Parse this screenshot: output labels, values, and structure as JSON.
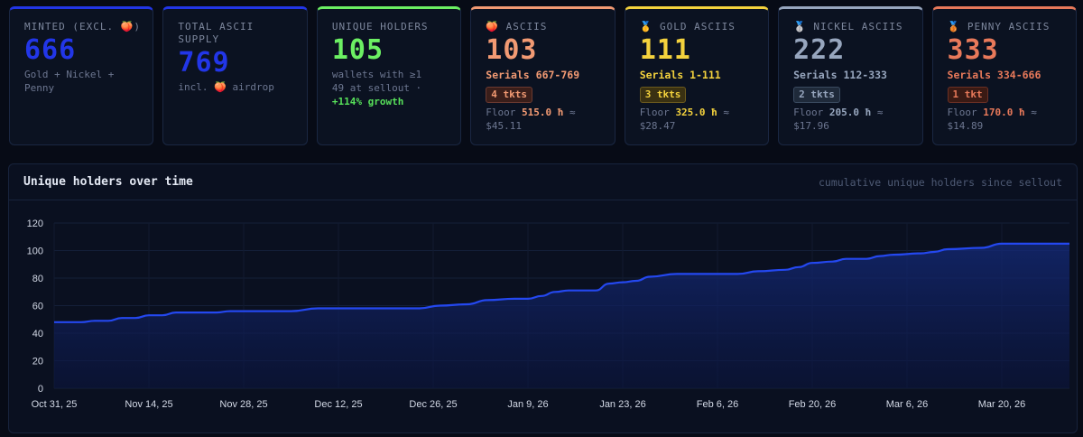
{
  "cards": [
    {
      "label": "MINTED (EXCL. 🍑)",
      "value": "666",
      "sub": "Gold + Nickel + Penny",
      "accent": "#2236e8"
    },
    {
      "label": "TOTAL ASCII SUPPLY",
      "value": "769",
      "sub": "incl. 🍑 airdrop",
      "accent": "#2236e8"
    },
    {
      "label": "UNIQUE HOLDERS",
      "value": "105",
      "sub": "wallets with ≥1",
      "sub2": "49 at sellout ·",
      "growth": "+114% growth",
      "accent": "#6cf063"
    },
    {
      "label": "🍑 ASCIIS",
      "value": "103",
      "serials": "Serials 667-769",
      "tkts": "4 tkts",
      "floor_label": "Floor",
      "floor": "515.0 ħ",
      "usd": "≈ $45.11",
      "accent": "#f29a73"
    },
    {
      "label": "🥇 GOLD ASCIIS",
      "value": "111",
      "serials": "Serials 1-111",
      "tkts": "3 tkts",
      "floor_label": "Floor",
      "floor": "325.0 ħ",
      "usd": "≈ $28.47",
      "accent": "#f4d23d"
    },
    {
      "label": "🥈 NICKEL ASCIIS",
      "value": "222",
      "serials": "Serials 112-333",
      "tkts": "2 tkts",
      "floor_label": "Floor",
      "floor": "205.0 ħ",
      "usd": "≈ $17.96",
      "accent": "#97a6be"
    },
    {
      "label": "🥉 PENNY ASCIIS",
      "value": "333",
      "serials": "Serials 334-666",
      "tkts": "1 tkt",
      "floor_label": "Floor",
      "floor": "170.0 ħ",
      "usd": "≈ $14.89",
      "accent": "#e8795a"
    }
  ],
  "panel": {
    "title": "Unique holders over time",
    "subtitle": "cumulative unique holders since sellout"
  },
  "chart_data": {
    "type": "area",
    "title": "Unique holders over time",
    "color": "#2448f0",
    "ylim": [
      0,
      120
    ],
    "yticks": [
      0,
      20,
      40,
      60,
      80,
      100,
      120
    ],
    "grid": true,
    "xticks": [
      "Oct 31, 25",
      "Nov 14, 25",
      "Nov 28, 25",
      "Dec 12, 25",
      "Dec 26, 25",
      "Jan 9, 26",
      "Jan 23, 26",
      "Feb 6, 26",
      "Feb 20, 26",
      "Mar 6, 26",
      "Mar 20, 26"
    ],
    "x_start": "2025-10-31",
    "x_end": "2026-03-30",
    "points": [
      {
        "x": "2025-10-31",
        "y": 48
      },
      {
        "x": "2025-11-04",
        "y": 48
      },
      {
        "x": "2025-11-06",
        "y": 49
      },
      {
        "x": "2025-11-08",
        "y": 49
      },
      {
        "x": "2025-11-10",
        "y": 51
      },
      {
        "x": "2025-11-12",
        "y": 51
      },
      {
        "x": "2025-11-14",
        "y": 53
      },
      {
        "x": "2025-11-16",
        "y": 53
      },
      {
        "x": "2025-11-18",
        "y": 55
      },
      {
        "x": "2025-11-24",
        "y": 55
      },
      {
        "x": "2025-11-26",
        "y": 56
      },
      {
        "x": "2025-12-05",
        "y": 56
      },
      {
        "x": "2025-12-09",
        "y": 58
      },
      {
        "x": "2025-12-24",
        "y": 58
      },
      {
        "x": "2025-12-27",
        "y": 60
      },
      {
        "x": "2025-12-31",
        "y": 61
      },
      {
        "x": "2026-01-03",
        "y": 64
      },
      {
        "x": "2026-01-07",
        "y": 65
      },
      {
        "x": "2026-01-09",
        "y": 65
      },
      {
        "x": "2026-01-11",
        "y": 67
      },
      {
        "x": "2026-01-13",
        "y": 70
      },
      {
        "x": "2026-01-15",
        "y": 71
      },
      {
        "x": "2026-01-19",
        "y": 71
      },
      {
        "x": "2026-01-21",
        "y": 76
      },
      {
        "x": "2026-01-23",
        "y": 77
      },
      {
        "x": "2026-01-25",
        "y": 78
      },
      {
        "x": "2026-01-27",
        "y": 81
      },
      {
        "x": "2026-01-31",
        "y": 83
      },
      {
        "x": "2026-02-09",
        "y": 83
      },
      {
        "x": "2026-02-12",
        "y": 85
      },
      {
        "x": "2026-02-16",
        "y": 86
      },
      {
        "x": "2026-02-18",
        "y": 88
      },
      {
        "x": "2026-02-20",
        "y": 91
      },
      {
        "x": "2026-02-23",
        "y": 92
      },
      {
        "x": "2026-02-25",
        "y": 94
      },
      {
        "x": "2026-02-28",
        "y": 94
      },
      {
        "x": "2026-03-02",
        "y": 96
      },
      {
        "x": "2026-03-04",
        "y": 97
      },
      {
        "x": "2026-03-08",
        "y": 98
      },
      {
        "x": "2026-03-10",
        "y": 99
      },
      {
        "x": "2026-03-12",
        "y": 101
      },
      {
        "x": "2026-03-17",
        "y": 102
      },
      {
        "x": "2026-03-20",
        "y": 105
      },
      {
        "x": "2026-03-30",
        "y": 105
      }
    ]
  }
}
